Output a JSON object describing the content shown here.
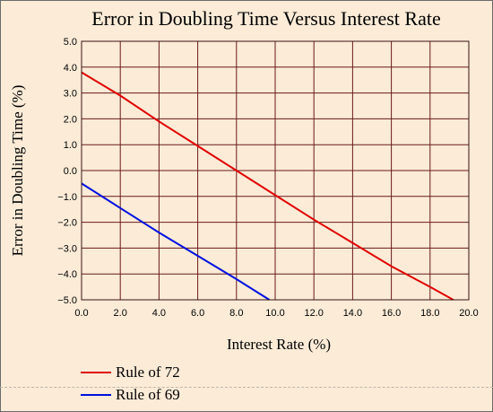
{
  "chart_data": {
    "type": "line",
    "title": "Error in Doubling Time Versus Interest Rate",
    "xlabel": "Interest Rate (%)",
    "ylabel": "Error in Doubling Time (%)",
    "xlim": [
      0,
      20
    ],
    "ylim": [
      -5,
      5
    ],
    "x_ticks": [
      "0.0",
      "2.0",
      "4.0",
      "6.0",
      "8.0",
      "10.0",
      "12.0",
      "14.0",
      "16.0",
      "18.0",
      "20.0"
    ],
    "y_ticks": [
      "5.0",
      "4.0",
      "3.0",
      "2.0",
      "1.0",
      "0.0",
      "−1.0",
      "−2.0",
      "−3.0",
      "−4.0",
      "−5.0"
    ],
    "grid": true,
    "legend_position": "bottom-left",
    "series": [
      {
        "name": "Rule of 72",
        "color": "#e00000",
        "x": [
          0,
          2,
          4,
          6,
          8,
          10,
          12,
          14,
          16,
          18,
          19.2
        ],
        "y": [
          3.8,
          2.9,
          1.9,
          0.95,
          0.0,
          -0.95,
          -1.9,
          -2.8,
          -3.7,
          -4.5,
          -5.0
        ]
      },
      {
        "name": "Rule of 69",
        "color": "#0010e0",
        "x": [
          0,
          2,
          4,
          6,
          8,
          9.7
        ],
        "y": [
          -0.5,
          -1.45,
          -2.4,
          -3.3,
          -4.2,
          -5.0
        ]
      }
    ]
  },
  "colors": {
    "background": "#FBEBD7",
    "grid": "#6b1a1a"
  }
}
